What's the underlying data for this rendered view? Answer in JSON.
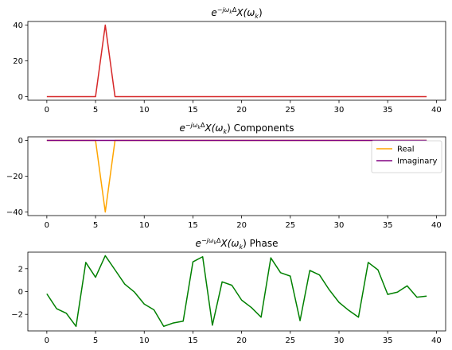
{
  "chart_data": [
    {
      "type": "line",
      "title_math": {
        "base": "e",
        "sup": "−jω",
        "sup_sub": "k",
        "sup_tail": "Δ",
        "body": "X(ω",
        "body_sub": "k",
        "body_tail": ")"
      },
      "title_suffix": "",
      "xlabel": "",
      "ylabel": "",
      "xlim": [
        -1.95,
        40.95
      ],
      "ylim": [
        -2,
        42
      ],
      "xticks": [
        0,
        5,
        10,
        15,
        20,
        25,
        30,
        35,
        40
      ],
      "yticks": [
        0,
        20,
        40
      ],
      "grid": false,
      "legend": null,
      "series": [
        {
          "color": "#d62728",
          "x": [
            0,
            1,
            2,
            3,
            4,
            5,
            6,
            7,
            8,
            9,
            10,
            11,
            12,
            13,
            14,
            15,
            16,
            17,
            18,
            19,
            20,
            21,
            22,
            23,
            24,
            25,
            26,
            27,
            28,
            29,
            30,
            31,
            32,
            33,
            34,
            35,
            36,
            37,
            38,
            39
          ],
          "y": [
            0,
            0,
            0,
            0,
            0,
            0,
            40,
            0,
            0,
            0,
            0,
            0,
            0,
            0,
            0,
            0,
            0,
            0,
            0,
            0,
            0,
            0,
            0,
            0,
            0,
            0,
            0,
            0,
            0,
            0,
            0,
            0,
            0,
            0,
            0,
            0,
            0,
            0,
            0,
            0
          ]
        }
      ]
    },
    {
      "type": "line",
      "title_math": {
        "base": "e",
        "sup": "−jω",
        "sup_sub": "k",
        "sup_tail": "Δ",
        "body": "X(ω",
        "body_sub": "k",
        "body_tail": ")"
      },
      "title_suffix": " Components",
      "xlabel": "",
      "ylabel": "",
      "xlim": [
        -1.95,
        40.95
      ],
      "ylim": [
        -42,
        2
      ],
      "xticks": [
        0,
        5,
        10,
        15,
        20,
        25,
        30,
        35,
        40
      ],
      "yticks": [
        0,
        -20,
        -40
      ],
      "grid": false,
      "legend": "upper right",
      "series": [
        {
          "name": "Real",
          "color": "#ffa500",
          "x": [
            0,
            1,
            2,
            3,
            4,
            5,
            6,
            7,
            8,
            9,
            10,
            11,
            12,
            13,
            14,
            15,
            16,
            17,
            18,
            19,
            20,
            21,
            22,
            23,
            24,
            25,
            26,
            27,
            28,
            29,
            30,
            31,
            32,
            33,
            34,
            35,
            36,
            37,
            38,
            39
          ],
          "y": [
            0,
            0,
            0,
            0,
            0,
            0,
            -40,
            0,
            0,
            0,
            0,
            0,
            0,
            0,
            0,
            0,
            0,
            0,
            0,
            0,
            0,
            0,
            0,
            0,
            0,
            0,
            0,
            0,
            0,
            0,
            0,
            0,
            0,
            0,
            0,
            0,
            0,
            0,
            0,
            0
          ]
        },
        {
          "name": "Imaginary",
          "color": "#800080",
          "x": [
            0,
            1,
            2,
            3,
            4,
            5,
            6,
            7,
            8,
            9,
            10,
            11,
            12,
            13,
            14,
            15,
            16,
            17,
            18,
            19,
            20,
            21,
            22,
            23,
            24,
            25,
            26,
            27,
            28,
            29,
            30,
            31,
            32,
            33,
            34,
            35,
            36,
            37,
            38,
            39
          ],
          "y": [
            0,
            0,
            0,
            0,
            0,
            0,
            0,
            0,
            0,
            0,
            0,
            0,
            0,
            0,
            0,
            0,
            0,
            0,
            0,
            0,
            0,
            0,
            0,
            0,
            0,
            0,
            0,
            0,
            0,
            0,
            0,
            0,
            0,
            0,
            0,
            0,
            0,
            0,
            0,
            0
          ]
        }
      ]
    },
    {
      "type": "line",
      "title_math": {
        "base": "e",
        "sup": "−jω",
        "sup_sub": "k",
        "sup_tail": "Δ",
        "body": "X(ω",
        "body_sub": "k",
        "body_tail": ")"
      },
      "title_suffix": " Phase",
      "xlabel": "",
      "ylabel": "",
      "xlim": [
        -1.95,
        40.95
      ],
      "ylim": [
        -3.45,
        3.45
      ],
      "xticks": [
        0,
        5,
        10,
        15,
        20,
        25,
        30,
        35,
        40
      ],
      "yticks": [
        2,
        0,
        -2
      ],
      "grid": false,
      "legend": null,
      "series": [
        {
          "color": "#008000",
          "x": [
            0,
            1,
            2,
            3,
            4,
            5,
            6,
            7,
            8,
            9,
            10,
            11,
            12,
            13,
            14,
            15,
            16,
            17,
            18,
            19,
            20,
            21,
            22,
            23,
            24,
            25,
            26,
            27,
            28,
            29,
            30,
            31,
            32,
            33,
            34,
            35,
            36,
            37,
            38,
            39
          ],
          "y": [
            -0.2,
            -1.5,
            -1.9,
            -3.05,
            2.55,
            1.25,
            3.14,
            1.9,
            0.65,
            -0.05,
            -1.1,
            -1.6,
            -3.05,
            -2.75,
            -2.6,
            2.6,
            3.05,
            -2.95,
            0.85,
            0.55,
            -0.75,
            -1.4,
            -2.25,
            2.95,
            1.65,
            1.35,
            -2.55,
            1.85,
            1.45,
            0.15,
            -0.95,
            -1.65,
            -2.25,
            2.55,
            1.9,
            -0.25,
            -0.05,
            0.5,
            -0.5,
            -0.4
          ]
        }
      ]
    }
  ]
}
